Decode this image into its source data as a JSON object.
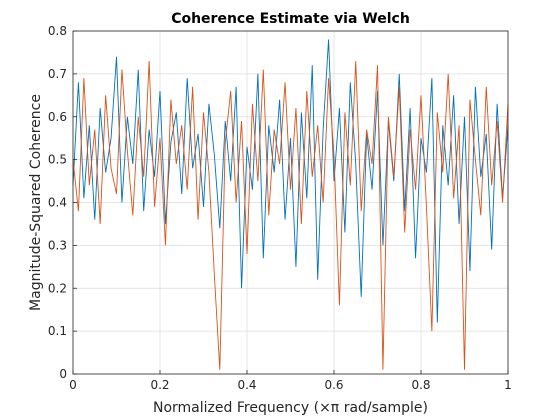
{
  "chart_data": {
    "type": "line",
    "title": "Coherence Estimate via Welch",
    "xlabel": "Normalized Frequency  (×π rad/sample)",
    "ylabel": "Magnitude-Squared Coherence",
    "xlim": [
      0,
      1
    ],
    "ylim": [
      0,
      0.8
    ],
    "xticks": [
      "0",
      "0.2",
      "0.4",
      "0.6",
      "0.8",
      "1"
    ],
    "yticks": [
      "0",
      "0.1",
      "0.2",
      "0.3",
      "0.4",
      "0.5",
      "0.6",
      "0.7",
      "0.8"
    ],
    "grid": true,
    "legend": "none",
    "x": [
      0,
      0.0125,
      0.025,
      0.0375,
      0.05,
      0.0625,
      0.075,
      0.0875,
      0.1,
      0.1125,
      0.125,
      0.1375,
      0.15,
      0.1625,
      0.175,
      0.1875,
      0.2,
      0.2125,
      0.225,
      0.2375,
      0.25,
      0.2625,
      0.275,
      0.2875,
      0.3,
      0.3125,
      0.325,
      0.3375,
      0.35,
      0.3625,
      0.375,
      0.3875,
      0.4,
      0.4125,
      0.425,
      0.4375,
      0.45,
      0.4625,
      0.475,
      0.4875,
      0.5,
      0.5125,
      0.525,
      0.5375,
      0.55,
      0.5625,
      0.575,
      0.5875,
      0.6,
      0.6125,
      0.625,
      0.6375,
      0.65,
      0.6625,
      0.675,
      0.6875,
      0.7,
      0.7125,
      0.725,
      0.7375,
      0.75,
      0.7625,
      0.775,
      0.7875,
      0.8,
      0.8125,
      0.825,
      0.8375,
      0.85,
      0.8625,
      0.875,
      0.8875,
      0.9,
      0.9125,
      0.925,
      0.9375,
      0.95,
      0.9625,
      0.975,
      0.9875,
      1
    ],
    "series": [
      {
        "color": "#0072BD",
        "values": [
          0.44,
          0.68,
          0.41,
          0.58,
          0.36,
          0.62,
          0.47,
          0.55,
          0.74,
          0.4,
          0.6,
          0.49,
          0.71,
          0.38,
          0.57,
          0.46,
          0.66,
          0.35,
          0.54,
          0.61,
          0.42,
          0.69,
          0.48,
          0.56,
          0.39,
          0.63,
          0.51,
          0.34,
          0.59,
          0.45,
          0.67,
          0.2,
          0.53,
          0.43,
          0.7,
          0.27,
          0.58,
          0.47,
          0.64,
          0.36,
          0.55,
          0.25,
          0.61,
          0.41,
          0.72,
          0.22,
          0.57,
          0.78,
          0.45,
          0.62,
          0.33,
          0.68,
          0.49,
          0.18,
          0.56,
          0.43,
          0.66,
          0.3,
          0.59,
          0.45,
          0.7,
          0.38,
          0.62,
          0.27,
          0.55,
          0.47,
          0.69,
          0.12,
          0.58,
          0.44,
          0.65,
          0.35,
          0.6,
          0.24,
          0.67,
          0.46,
          0.56,
          0.29,
          0.63,
          0.41,
          0.58
        ]
      },
      {
        "color": "#D95319",
        "values": [
          0.5,
          0.38,
          0.69,
          0.44,
          0.57,
          0.35,
          0.65,
          0.48,
          0.42,
          0.71,
          0.52,
          0.37,
          0.6,
          0.46,
          0.73,
          0.39,
          0.55,
          0.3,
          0.64,
          0.49,
          0.58,
          0.43,
          0.67,
          0.36,
          0.61,
          0.47,
          0.23,
          0.01,
          0.54,
          0.66,
          0.4,
          0.59,
          0.28,
          0.63,
          0.45,
          0.71,
          0.37,
          0.57,
          0.49,
          0.68,
          0.43,
          0.62,
          0.35,
          0.66,
          0.46,
          0.58,
          0.4,
          0.69,
          0.51,
          0.16,
          0.61,
          0.44,
          0.73,
          0.38,
          0.57,
          0.49,
          0.72,
          0.01,
          0.6,
          0.46,
          0.67,
          0.33,
          0.57,
          0.43,
          0.65,
          0.39,
          0.1,
          0.61,
          0.47,
          0.7,
          0.41,
          0.58,
          0.01,
          0.64,
          0.5,
          0.37,
          0.67,
          0.44,
          0.59,
          0.4,
          0.63
        ]
      }
    ]
  }
}
